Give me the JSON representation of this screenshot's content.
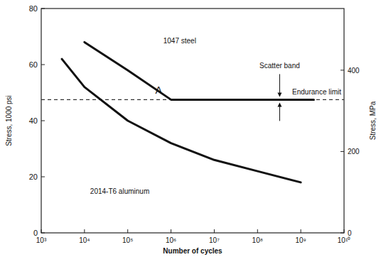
{
  "chart_data": {
    "type": "line",
    "log": "x",
    "xlabel": "Number of cycles",
    "ylabel": "Stress, 1000 psi",
    "y2label": "Stress, MPa",
    "xlim": [
      1000,
      10000000000
    ],
    "xticks": [
      {
        "value": 1000,
        "label": "10³"
      },
      {
        "value": 10000,
        "label": "10⁴"
      },
      {
        "value": 100000,
        "label": "10⁵"
      },
      {
        "value": 1000000,
        "label": "10⁶"
      },
      {
        "value": 10000000,
        "label": "10⁷"
      },
      {
        "value": 100000000,
        "label": "10⁸"
      },
      {
        "value": 1000000000,
        "label": "10⁹"
      },
      {
        "value": 10000000000,
        "label": "10¹⁰"
      }
    ],
    "ylim": [
      0,
      80
    ],
    "yticks": [
      0,
      20,
      40,
      60,
      80
    ],
    "y2lim": [
      0,
      551.6
    ],
    "y2ticks": [
      0,
      200,
      400
    ],
    "series": [
      {
        "name": "1047 steel",
        "color": "#111111",
        "line_style": "solid",
        "x": [
          10000,
          100000,
          1000000,
          2000000000
        ],
        "values": [
          68,
          58,
          47.5,
          47.5
        ]
      },
      {
        "name": "2014-T6 aluminum",
        "color": "#111111",
        "line_style": "solid",
        "x": [
          3000,
          10000,
          100000,
          1000000,
          10000000,
          100000000,
          1000000000
        ],
        "values": [
          62,
          52,
          40,
          32,
          26,
          22,
          18
        ]
      }
    ],
    "reference_lines": [
      {
        "value": 47.5,
        "label": "Endurance limit",
        "line_style": "dashed"
      }
    ],
    "annotations": [
      "Scatter band",
      "A"
    ]
  }
}
